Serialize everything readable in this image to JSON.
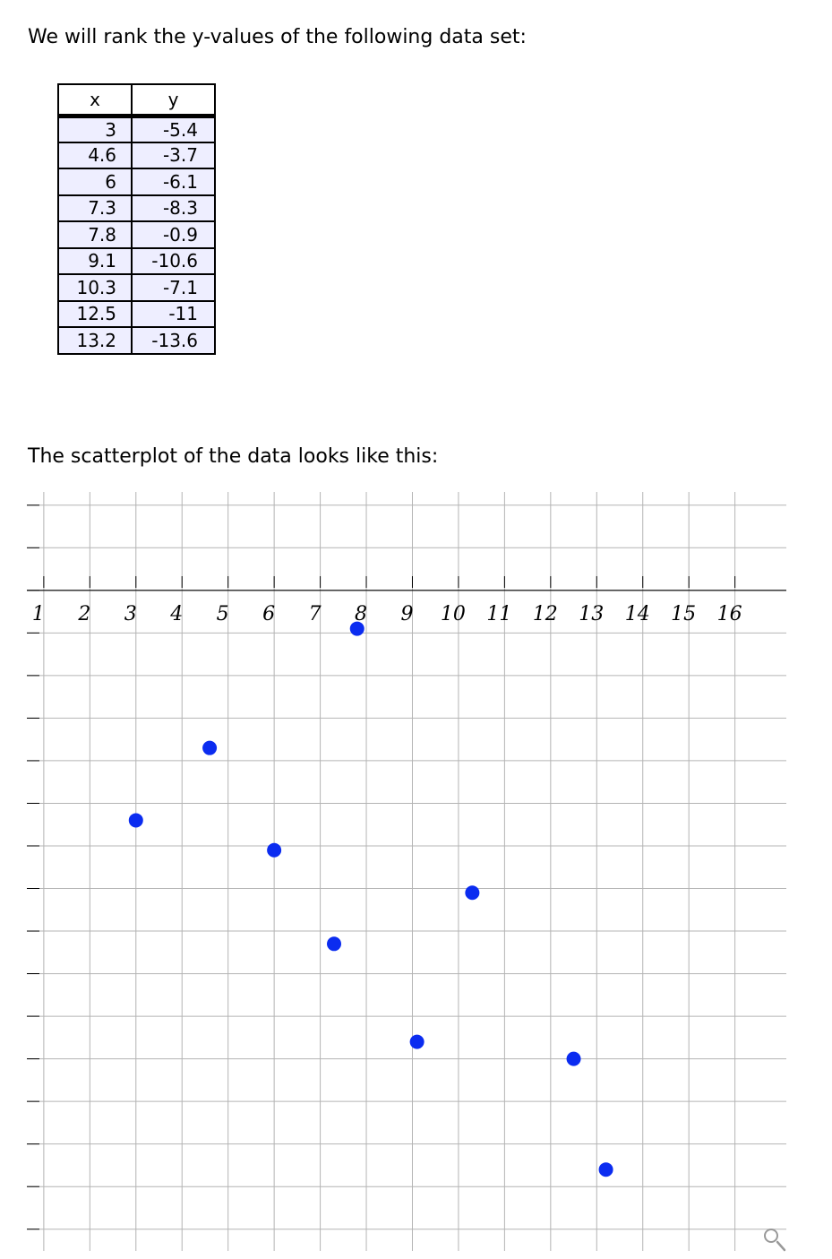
{
  "intro_text": "We will rank the y-values of the following data set:",
  "table": {
    "headers": [
      "x",
      "y"
    ],
    "rows": [
      [
        "3",
        "-5.4"
      ],
      [
        "4.6",
        "-3.7"
      ],
      [
        "6",
        "-6.1"
      ],
      [
        "7.3",
        "-8.3"
      ],
      [
        "7.8",
        "-0.9"
      ],
      [
        "9.1",
        "-10.6"
      ],
      [
        "10.3",
        "-7.1"
      ],
      [
        "12.5",
        "-11"
      ],
      [
        "13.2",
        "-13.6"
      ]
    ]
  },
  "plot_intro_text": "The scatterplot of the data looks like this:",
  "chart_data": {
    "type": "scatter",
    "x": [
      3,
      4.6,
      6,
      7.3,
      7.8,
      9.1,
      10.3,
      12.5,
      13.2
    ],
    "y": [
      -5.4,
      -3.7,
      -6.1,
      -8.3,
      -0.9,
      -10.6,
      -7.1,
      -11,
      -13.6
    ],
    "xlim": [
      0.05,
      16.35
    ],
    "ylim": [
      -15.7,
      2.5
    ],
    "x_ticks": [
      1,
      2,
      3,
      4,
      5,
      6,
      7,
      8,
      9,
      10,
      11,
      12,
      13,
      14,
      15,
      16
    ],
    "grid": true,
    "point_color": "#0b2cf0",
    "grid_color": "#b4b4b4",
    "axis_color": "#000000"
  },
  "zoom_icon": "magnifier-icon"
}
